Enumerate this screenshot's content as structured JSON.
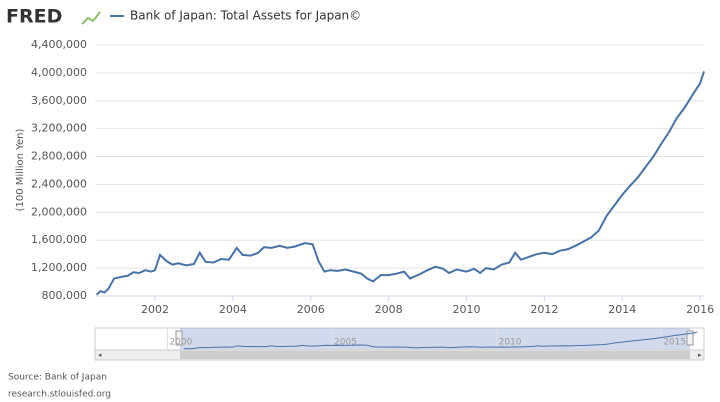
{
  "header": {
    "logo": "FRED",
    "legend_label": "Bank of Japan: Total Assets for Japan©"
  },
  "chart_data": {
    "type": "line",
    "title": "Bank of Japan: Total Assets for Japan©",
    "y_label": "(100 Million Yen)",
    "x": [
      2000.5,
      2000.6,
      2000.7,
      2000.8,
      2000.95,
      2001.1,
      2001.3,
      2001.45,
      2001.6,
      2001.75,
      2001.9,
      2002.0,
      2002.13,
      2002.3,
      2002.45,
      2002.6,
      2002.8,
      2003.0,
      2003.15,
      2003.3,
      2003.5,
      2003.7,
      2003.9,
      2004.1,
      2004.25,
      2004.45,
      2004.65,
      2004.8,
      2005.0,
      2005.2,
      2005.4,
      2005.6,
      2005.85,
      2006.05,
      2006.2,
      2006.35,
      2006.5,
      2006.7,
      2006.9,
      2007.1,
      2007.3,
      2007.45,
      2007.6,
      2007.8,
      2008.0,
      2008.2,
      2008.4,
      2008.55,
      2008.75,
      2009.0,
      2009.2,
      2009.4,
      2009.55,
      2009.75,
      2010.0,
      2010.2,
      2010.35,
      2010.5,
      2010.7,
      2010.9,
      2011.1,
      2011.25,
      2011.4,
      2011.6,
      2011.8,
      2012.0,
      2012.2,
      2012.4,
      2012.6,
      2012.8,
      2013.0,
      2013.2,
      2013.4,
      2013.6,
      2013.8,
      2014.0,
      2014.2,
      2014.4,
      2014.6,
      2014.8,
      2015.0,
      2015.2,
      2015.4,
      2015.6,
      2015.8,
      2016.0,
      2016.1
    ],
    "series": [
      {
        "name": "Bank of Japan: Total Assets for Japan©",
        "color": "#4572a7",
        "values": [
          820000,
          870000,
          850000,
          900000,
          1050000,
          1070000,
          1090000,
          1140000,
          1130000,
          1170000,
          1150000,
          1170000,
          1390000,
          1300000,
          1250000,
          1270000,
          1240000,
          1260000,
          1420000,
          1290000,
          1280000,
          1330000,
          1320000,
          1490000,
          1390000,
          1380000,
          1420000,
          1500000,
          1490000,
          1520000,
          1490000,
          1510000,
          1560000,
          1540000,
          1300000,
          1150000,
          1170000,
          1160000,
          1180000,
          1150000,
          1120000,
          1050000,
          1010000,
          1100000,
          1100000,
          1120000,
          1150000,
          1050000,
          1100000,
          1170000,
          1220000,
          1190000,
          1130000,
          1180000,
          1150000,
          1190000,
          1130000,
          1200000,
          1180000,
          1250000,
          1280000,
          1420000,
          1320000,
          1360000,
          1400000,
          1420000,
          1400000,
          1450000,
          1470000,
          1520000,
          1580000,
          1640000,
          1740000,
          1950000,
          2100000,
          2250000,
          2380000,
          2500000,
          2650000,
          2800000,
          2980000,
          3150000,
          3350000,
          3500000,
          3680000,
          3850000,
          4020000
        ]
      }
    ],
    "xlim": [
      2000.46,
      2016.1
    ],
    "xticks": [
      2002,
      2004,
      2006,
      2008,
      2010,
      2012,
      2014,
      2016
    ],
    "ylim": [
      800000,
      4400000
    ],
    "yticks": [
      {
        "value": 800000,
        "label": "800,000"
      },
      {
        "value": 1200000,
        "label": "1,200,000"
      },
      {
        "value": 1600000,
        "label": "1,600,000"
      },
      {
        "value": 2000000,
        "label": "2,000,000"
      },
      {
        "value": 2400000,
        "label": "2,400,000"
      },
      {
        "value": 2800000,
        "label": "2,800,000"
      },
      {
        "value": 3200000,
        "label": "3,200,000"
      },
      {
        "value": 3600000,
        "label": "3,600,000"
      },
      {
        "value": 4000000,
        "label": "4,000,000"
      },
      {
        "value": 4400000,
        "label": "4,400,000"
      }
    ],
    "grid": true
  },
  "navigator": {
    "xlim": [
      1997.8,
      2016.3
    ],
    "xticks": [
      2000,
      2005,
      2010,
      2015
    ]
  },
  "footer": {
    "source": "Source: Bank of Japan",
    "url": "research.stlouisfed.org"
  }
}
